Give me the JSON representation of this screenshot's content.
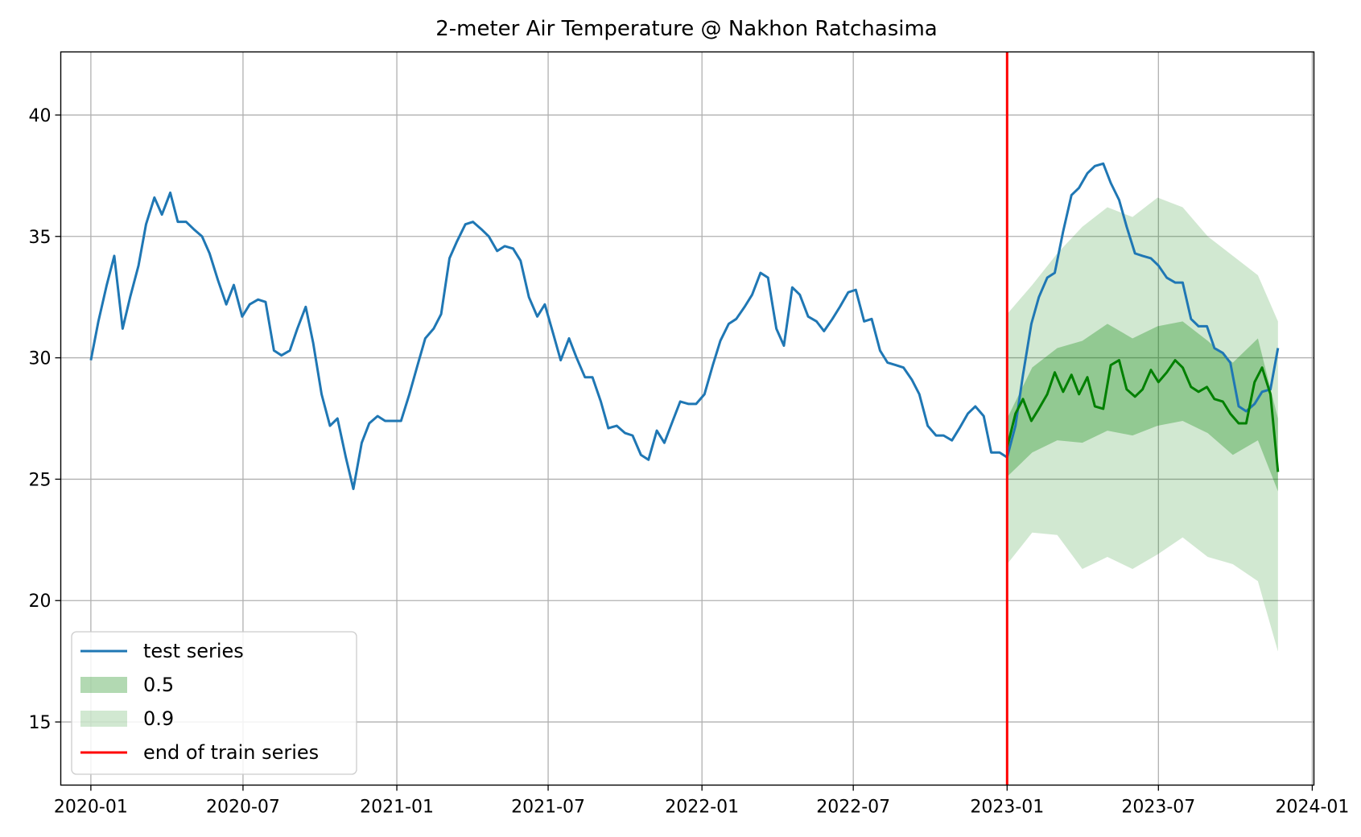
{
  "chart_data": {
    "type": "line",
    "title": "2-meter Air Temperature @ Nakhon Ratchasima",
    "xlabel": "",
    "ylabel": "",
    "x_range": [
      "2019-11-26",
      "2024-01-03"
    ],
    "ylim": [
      12.4,
      42.6
    ],
    "x_ticks": [
      {
        "date": "2020-01-01",
        "label": "2020-01"
      },
      {
        "date": "2020-07-01",
        "label": "2020-07"
      },
      {
        "date": "2021-01-01",
        "label": "2021-01"
      },
      {
        "date": "2021-07-01",
        "label": "2021-07"
      },
      {
        "date": "2022-01-01",
        "label": "2022-01"
      },
      {
        "date": "2022-07-01",
        "label": "2022-07"
      },
      {
        "date": "2023-01-01",
        "label": "2023-01"
      },
      {
        "date": "2023-07-01",
        "label": "2023-07"
      },
      {
        "date": "2024-01-01",
        "label": "2024-01"
      }
    ],
    "y_ticks": [
      {
        "value": 15,
        "label": "15"
      },
      {
        "value": 20,
        "label": "20"
      },
      {
        "value": 25,
        "label": "25"
      },
      {
        "value": 30,
        "label": "30"
      },
      {
        "value": 35,
        "label": "35"
      },
      {
        "value": 40,
        "label": "40"
      }
    ],
    "grid": true,
    "legend_position": "lower-left",
    "legend": [
      {
        "label": "test series",
        "kind": "line",
        "color": "#1f77b4"
      },
      {
        "label": "0.5",
        "kind": "band",
        "color": "#008000",
        "opacity": 0.3
      },
      {
        "label": "0.9",
        "kind": "band",
        "color": "#008000",
        "opacity": 0.18
      },
      {
        "label": "end of train series",
        "kind": "line",
        "color": "#ff0000"
      }
    ],
    "series": [
      {
        "name": "test series",
        "color": "#1f77b4",
        "points": [
          [
            "2020-01-01",
            29.9
          ],
          [
            "2020-01-10",
            31.5
          ],
          [
            "2020-01-20",
            33.0
          ],
          [
            "2020-01-29",
            34.2
          ],
          [
            "2020-02-08",
            31.2
          ],
          [
            "2020-02-17",
            32.5
          ],
          [
            "2020-02-27",
            33.8
          ],
          [
            "2020-03-07",
            35.5
          ],
          [
            "2020-03-17",
            36.6
          ],
          [
            "2020-03-26",
            35.9
          ],
          [
            "2020-04-05",
            36.8
          ],
          [
            "2020-04-14",
            35.6
          ],
          [
            "2020-04-24",
            35.6
          ],
          [
            "2020-05-03",
            35.3
          ],
          [
            "2020-05-13",
            35.0
          ],
          [
            "2020-05-22",
            34.3
          ],
          [
            "2020-06-01",
            33.2
          ],
          [
            "2020-06-11",
            32.2
          ],
          [
            "2020-06-20",
            33.0
          ],
          [
            "2020-06-30",
            31.7
          ],
          [
            "2020-07-09",
            32.2
          ],
          [
            "2020-07-19",
            32.4
          ],
          [
            "2020-07-28",
            32.3
          ],
          [
            "2020-08-07",
            30.3
          ],
          [
            "2020-08-16",
            30.1
          ],
          [
            "2020-08-26",
            30.3
          ],
          [
            "2020-09-04",
            31.2
          ],
          [
            "2020-09-14",
            32.1
          ],
          [
            "2020-09-23",
            30.6
          ],
          [
            "2020-10-03",
            28.5
          ],
          [
            "2020-10-13",
            27.2
          ],
          [
            "2020-10-22",
            27.5
          ],
          [
            "2020-11-01",
            25.9
          ],
          [
            "2020-11-10",
            24.6
          ],
          [
            "2020-11-20",
            26.5
          ],
          [
            "2020-11-29",
            27.3
          ],
          [
            "2020-12-09",
            27.6
          ],
          [
            "2020-12-18",
            27.4
          ],
          [
            "2020-12-28",
            27.4
          ],
          [
            "2021-01-06",
            27.4
          ],
          [
            "2021-01-16",
            28.5
          ],
          [
            "2021-01-25",
            29.6
          ],
          [
            "2021-02-04",
            30.8
          ],
          [
            "2021-02-14",
            31.2
          ],
          [
            "2021-02-23",
            31.8
          ],
          [
            "2021-03-05",
            34.1
          ],
          [
            "2021-03-14",
            34.8
          ],
          [
            "2021-03-24",
            35.5
          ],
          [
            "2021-04-02",
            35.6
          ],
          [
            "2021-04-12",
            35.3
          ],
          [
            "2021-04-21",
            35.0
          ],
          [
            "2021-05-01",
            34.4
          ],
          [
            "2021-05-10",
            34.6
          ],
          [
            "2021-05-20",
            34.5
          ],
          [
            "2021-05-29",
            34.0
          ],
          [
            "2021-06-08",
            32.5
          ],
          [
            "2021-06-18",
            31.7
          ],
          [
            "2021-06-27",
            32.2
          ],
          [
            "2021-07-07",
            31.0
          ],
          [
            "2021-07-16",
            29.9
          ],
          [
            "2021-07-26",
            30.8
          ],
          [
            "2021-08-04",
            30.0
          ],
          [
            "2021-08-14",
            29.2
          ],
          [
            "2021-08-23",
            29.2
          ],
          [
            "2021-09-02",
            28.2
          ],
          [
            "2021-09-11",
            27.1
          ],
          [
            "2021-09-21",
            27.2
          ],
          [
            "2021-10-01",
            26.9
          ],
          [
            "2021-10-10",
            26.8
          ],
          [
            "2021-10-20",
            26.0
          ],
          [
            "2021-10-29",
            25.8
          ],
          [
            "2021-11-08",
            27.0
          ],
          [
            "2021-11-17",
            26.5
          ],
          [
            "2021-11-27",
            27.4
          ],
          [
            "2021-12-06",
            28.2
          ],
          [
            "2021-12-16",
            28.1
          ],
          [
            "2021-12-25",
            28.1
          ],
          [
            "2022-01-04",
            28.5
          ],
          [
            "2022-01-14",
            29.7
          ],
          [
            "2022-01-23",
            30.7
          ],
          [
            "2022-02-02",
            31.4
          ],
          [
            "2022-02-11",
            31.6
          ],
          [
            "2022-02-21",
            32.1
          ],
          [
            "2022-03-02",
            32.6
          ],
          [
            "2022-03-12",
            33.5
          ],
          [
            "2022-03-21",
            33.3
          ],
          [
            "2022-03-31",
            31.2
          ],
          [
            "2022-04-09",
            30.5
          ],
          [
            "2022-04-19",
            32.9
          ],
          [
            "2022-04-28",
            32.6
          ],
          [
            "2022-05-08",
            31.7
          ],
          [
            "2022-05-18",
            31.5
          ],
          [
            "2022-05-27",
            31.1
          ],
          [
            "2022-06-06",
            31.6
          ],
          [
            "2022-06-15",
            32.1
          ],
          [
            "2022-06-25",
            32.7
          ],
          [
            "2022-07-04",
            32.8
          ],
          [
            "2022-07-14",
            31.5
          ],
          [
            "2022-07-23",
            31.6
          ],
          [
            "2022-08-02",
            30.3
          ],
          [
            "2022-08-11",
            29.8
          ],
          [
            "2022-08-21",
            29.7
          ],
          [
            "2022-08-30",
            29.6
          ],
          [
            "2022-09-09",
            29.1
          ],
          [
            "2022-09-18",
            28.5
          ],
          [
            "2022-09-28",
            27.2
          ],
          [
            "2022-10-08",
            26.8
          ],
          [
            "2022-10-17",
            26.8
          ],
          [
            "2022-10-27",
            26.6
          ],
          [
            "2022-11-05",
            27.1
          ],
          [
            "2022-11-15",
            27.7
          ],
          [
            "2022-11-24",
            28.0
          ],
          [
            "2022-12-04",
            27.6
          ],
          [
            "2022-12-13",
            26.1
          ],
          [
            "2022-12-23",
            26.1
          ],
          [
            "2023-01-01",
            25.9
          ],
          [
            "2023-01-11",
            27.2
          ],
          [
            "2023-01-20",
            29.3
          ],
          [
            "2023-01-30",
            31.4
          ],
          [
            "2023-02-08",
            32.5
          ],
          [
            "2023-02-18",
            33.3
          ],
          [
            "2023-02-27",
            33.5
          ],
          [
            "2023-03-09",
            35.2
          ],
          [
            "2023-03-19",
            36.7
          ],
          [
            "2023-03-28",
            37.0
          ],
          [
            "2023-04-07",
            37.6
          ],
          [
            "2023-04-16",
            37.9
          ],
          [
            "2023-04-26",
            38.0
          ],
          [
            "2023-05-05",
            37.2
          ],
          [
            "2023-05-15",
            36.5
          ],
          [
            "2023-05-24",
            35.4
          ],
          [
            "2023-06-03",
            34.3
          ],
          [
            "2023-06-12",
            34.2
          ],
          [
            "2023-06-22",
            34.1
          ],
          [
            "2023-07-01",
            33.8
          ],
          [
            "2023-07-11",
            33.3
          ],
          [
            "2023-07-21",
            33.1
          ],
          [
            "2023-07-30",
            33.1
          ],
          [
            "2023-08-09",
            31.6
          ],
          [
            "2023-08-18",
            31.3
          ],
          [
            "2023-08-28",
            31.3
          ],
          [
            "2023-09-06",
            30.4
          ],
          [
            "2023-09-16",
            30.2
          ],
          [
            "2023-09-25",
            29.8
          ],
          [
            "2023-10-05",
            28.0
          ],
          [
            "2023-10-14",
            27.8
          ],
          [
            "2023-10-24",
            28.1
          ],
          [
            "2023-11-02",
            28.6
          ],
          [
            "2023-11-12",
            28.7
          ],
          [
            "2023-11-21",
            30.4
          ]
        ]
      },
      {
        "name": "",
        "color": "#008000",
        "points": [
          [
            "2023-01-01",
            26.3
          ],
          [
            "2023-01-11",
            27.7
          ],
          [
            "2023-01-20",
            28.3
          ],
          [
            "2023-01-30",
            27.4
          ],
          [
            "2023-02-08",
            27.9
          ],
          [
            "2023-02-18",
            28.5
          ],
          [
            "2023-02-27",
            29.4
          ],
          [
            "2023-03-09",
            28.6
          ],
          [
            "2023-03-19",
            29.3
          ],
          [
            "2023-03-28",
            28.5
          ],
          [
            "2023-04-07",
            29.2
          ],
          [
            "2023-04-16",
            28.0
          ],
          [
            "2023-04-26",
            27.9
          ],
          [
            "2023-05-05",
            29.7
          ],
          [
            "2023-05-15",
            29.9
          ],
          [
            "2023-05-24",
            28.7
          ],
          [
            "2023-06-03",
            28.4
          ],
          [
            "2023-06-12",
            28.7
          ],
          [
            "2023-06-22",
            29.5
          ],
          [
            "2023-07-01",
            29.0
          ],
          [
            "2023-07-11",
            29.4
          ],
          [
            "2023-07-21",
            29.9
          ],
          [
            "2023-07-30",
            29.6
          ],
          [
            "2023-08-09",
            28.8
          ],
          [
            "2023-08-18",
            28.6
          ],
          [
            "2023-08-28",
            28.8
          ],
          [
            "2023-09-06",
            28.3
          ],
          [
            "2023-09-16",
            28.2
          ],
          [
            "2023-09-25",
            27.7
          ],
          [
            "2023-10-05",
            27.3
          ],
          [
            "2023-10-14",
            27.3
          ],
          [
            "2023-10-24",
            29.0
          ],
          [
            "2023-11-02",
            29.6
          ],
          [
            "2023-11-12",
            28.5
          ],
          [
            "2023-11-21",
            25.3
          ]
        ]
      }
    ],
    "bands": [
      {
        "name": "0.5",
        "color": "#008000",
        "opacity": 0.3,
        "points": [
          [
            "2023-01-01",
            25.1,
            27.5
          ],
          [
            "2023-01-31",
            26.1,
            29.6
          ],
          [
            "2023-03-02",
            26.6,
            30.4
          ],
          [
            "2023-04-01",
            26.5,
            30.7
          ],
          [
            "2023-05-01",
            27.0,
            31.4
          ],
          [
            "2023-05-31",
            26.8,
            30.8
          ],
          [
            "2023-06-30",
            27.2,
            31.3
          ],
          [
            "2023-07-30",
            27.4,
            31.5
          ],
          [
            "2023-08-29",
            26.9,
            30.7
          ],
          [
            "2023-09-28",
            26.0,
            29.8
          ],
          [
            "2023-10-28",
            26.6,
            30.8
          ],
          [
            "2023-11-21",
            24.5,
            27.5
          ]
        ]
      },
      {
        "name": "0.9",
        "color": "#008000",
        "opacity": 0.18,
        "points": [
          [
            "2023-01-01",
            21.5,
            31.8
          ],
          [
            "2023-01-31",
            22.8,
            33.0
          ],
          [
            "2023-03-02",
            22.7,
            34.3
          ],
          [
            "2023-04-01",
            21.3,
            35.4
          ],
          [
            "2023-05-01",
            21.8,
            36.2
          ],
          [
            "2023-05-31",
            21.3,
            35.8
          ],
          [
            "2023-06-30",
            21.9,
            36.6
          ],
          [
            "2023-07-30",
            22.6,
            36.2
          ],
          [
            "2023-08-29",
            21.8,
            35.0
          ],
          [
            "2023-09-28",
            21.5,
            34.2
          ],
          [
            "2023-10-28",
            20.8,
            33.4
          ],
          [
            "2023-11-21",
            17.9,
            31.5
          ]
        ]
      }
    ],
    "vlines": [
      {
        "name": "end of train series",
        "date": "2023-01-01",
        "color": "#ff0000"
      }
    ]
  }
}
